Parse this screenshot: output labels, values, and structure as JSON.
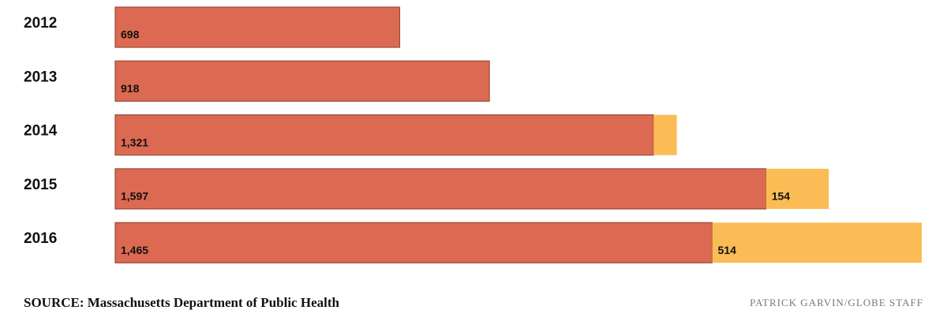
{
  "chart_data": {
    "type": "stacked-bar",
    "categories": [
      "2012",
      "2013",
      "2014",
      "2015",
      "2016"
    ],
    "series": [
      {
        "color": "#dc6a52",
        "values": [
          698,
          918,
          1321,
          1597,
          1465
        ],
        "value_labels": [
          "698",
          "918",
          "1,321",
          "1,597",
          "1,465"
        ]
      },
      {
        "color": "#fbbc56",
        "values": [
          null,
          null,
          57,
          154,
          514
        ],
        "value_labels": [
          null,
          null,
          null,
          "154",
          "514"
        ]
      }
    ],
    "source": "SOURCE: Massachusetts Department of Public Health",
    "credit": "PATRICK GARVIN/GLOBE STAFF"
  }
}
